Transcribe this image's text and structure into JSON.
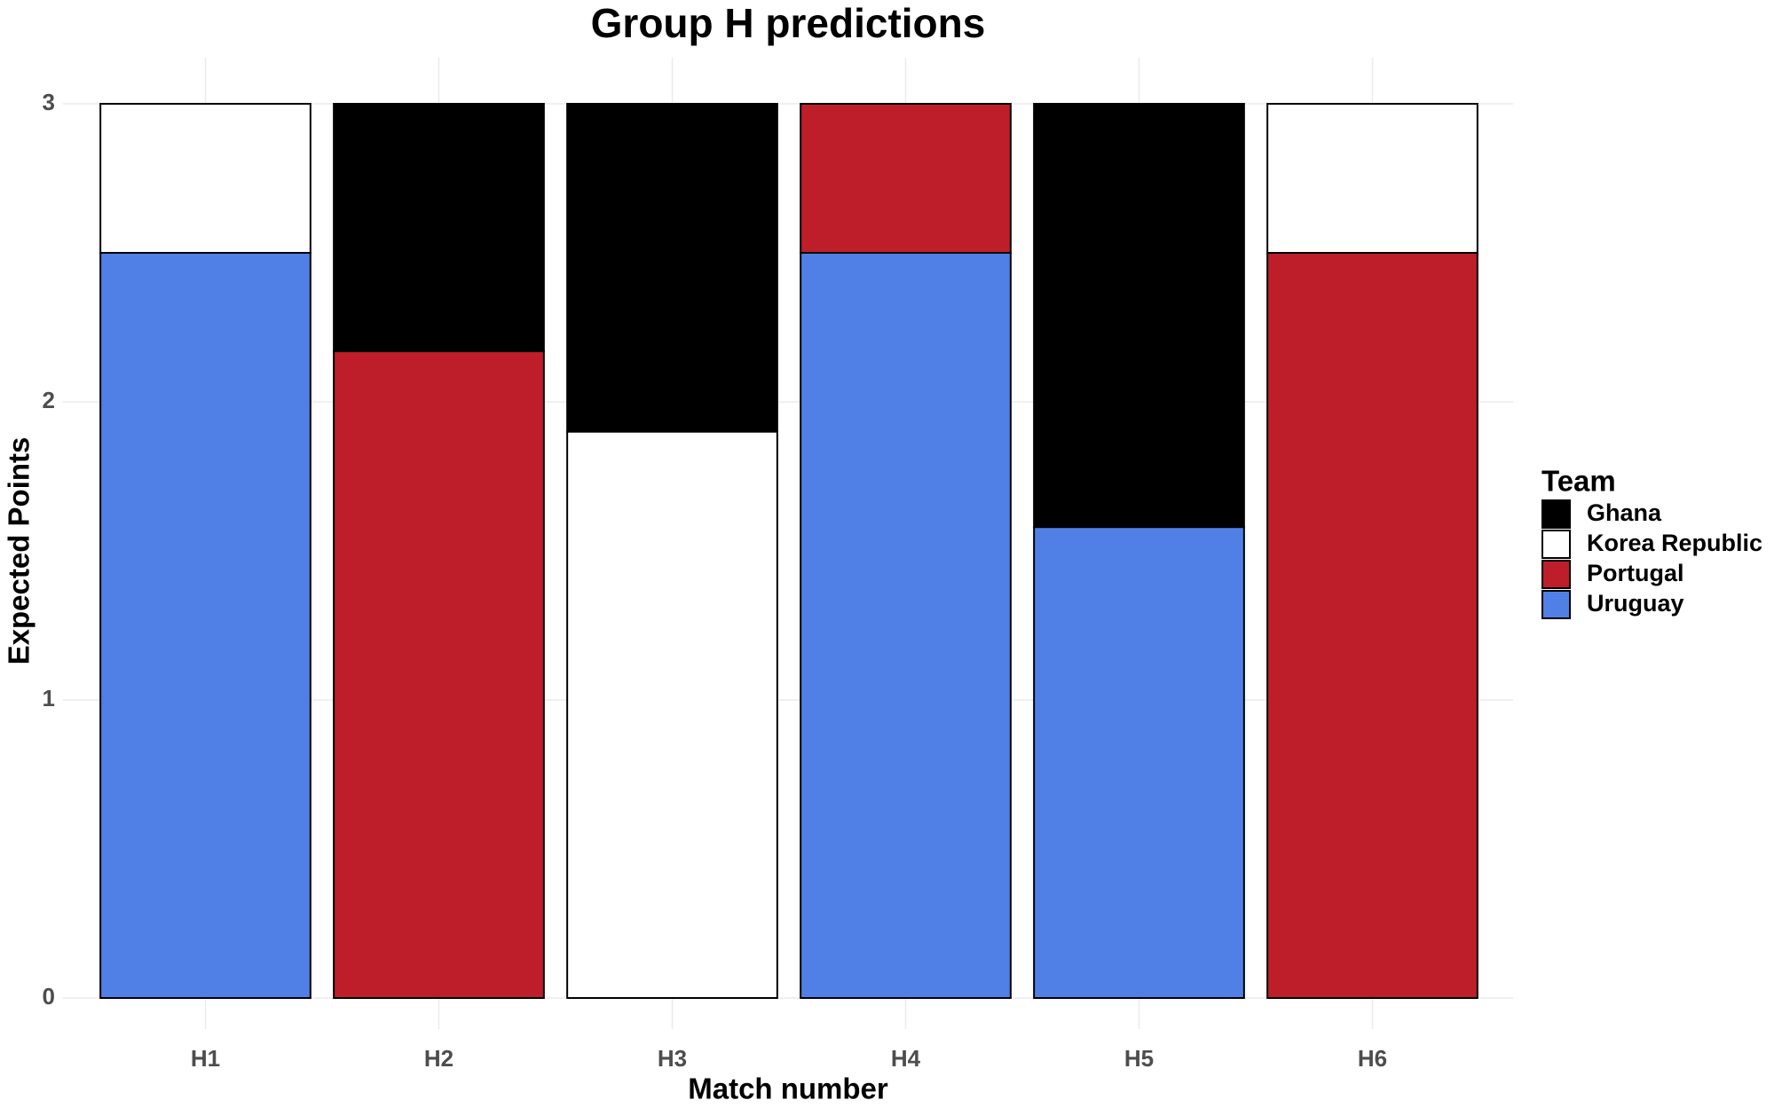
{
  "chart_data": {
    "type": "stacked-bar",
    "title": "Group H predictions",
    "x_label": "Match number",
    "y_label": "Expected Points",
    "categories": [
      "H1",
      "H2",
      "H3",
      "H4",
      "H5",
      "H6"
    ],
    "series": [
      {
        "name": "Ghana",
        "color": "#000000",
        "values": [
          null,
          0.83,
          1.1,
          null,
          1.42,
          null
        ]
      },
      {
        "name": "Korea Republic",
        "color": "#ffffff",
        "values": [
          0.5,
          null,
          1.9,
          null,
          null,
          0.5
        ]
      },
      {
        "name": "Portugal",
        "color": "#be1e2a",
        "values": [
          null,
          2.17,
          null,
          0.5,
          null,
          2.5
        ]
      },
      {
        "name": "Uruguay",
        "color": "#5080e6",
        "values": [
          2.5,
          null,
          null,
          2.5,
          1.58,
          null
        ]
      }
    ],
    "ylim": [
      0,
      3
    ],
    "yticks": [
      0,
      1,
      2,
      3
    ],
    "grid": true,
    "legend_title": "Team",
    "legend_position": "right"
  }
}
